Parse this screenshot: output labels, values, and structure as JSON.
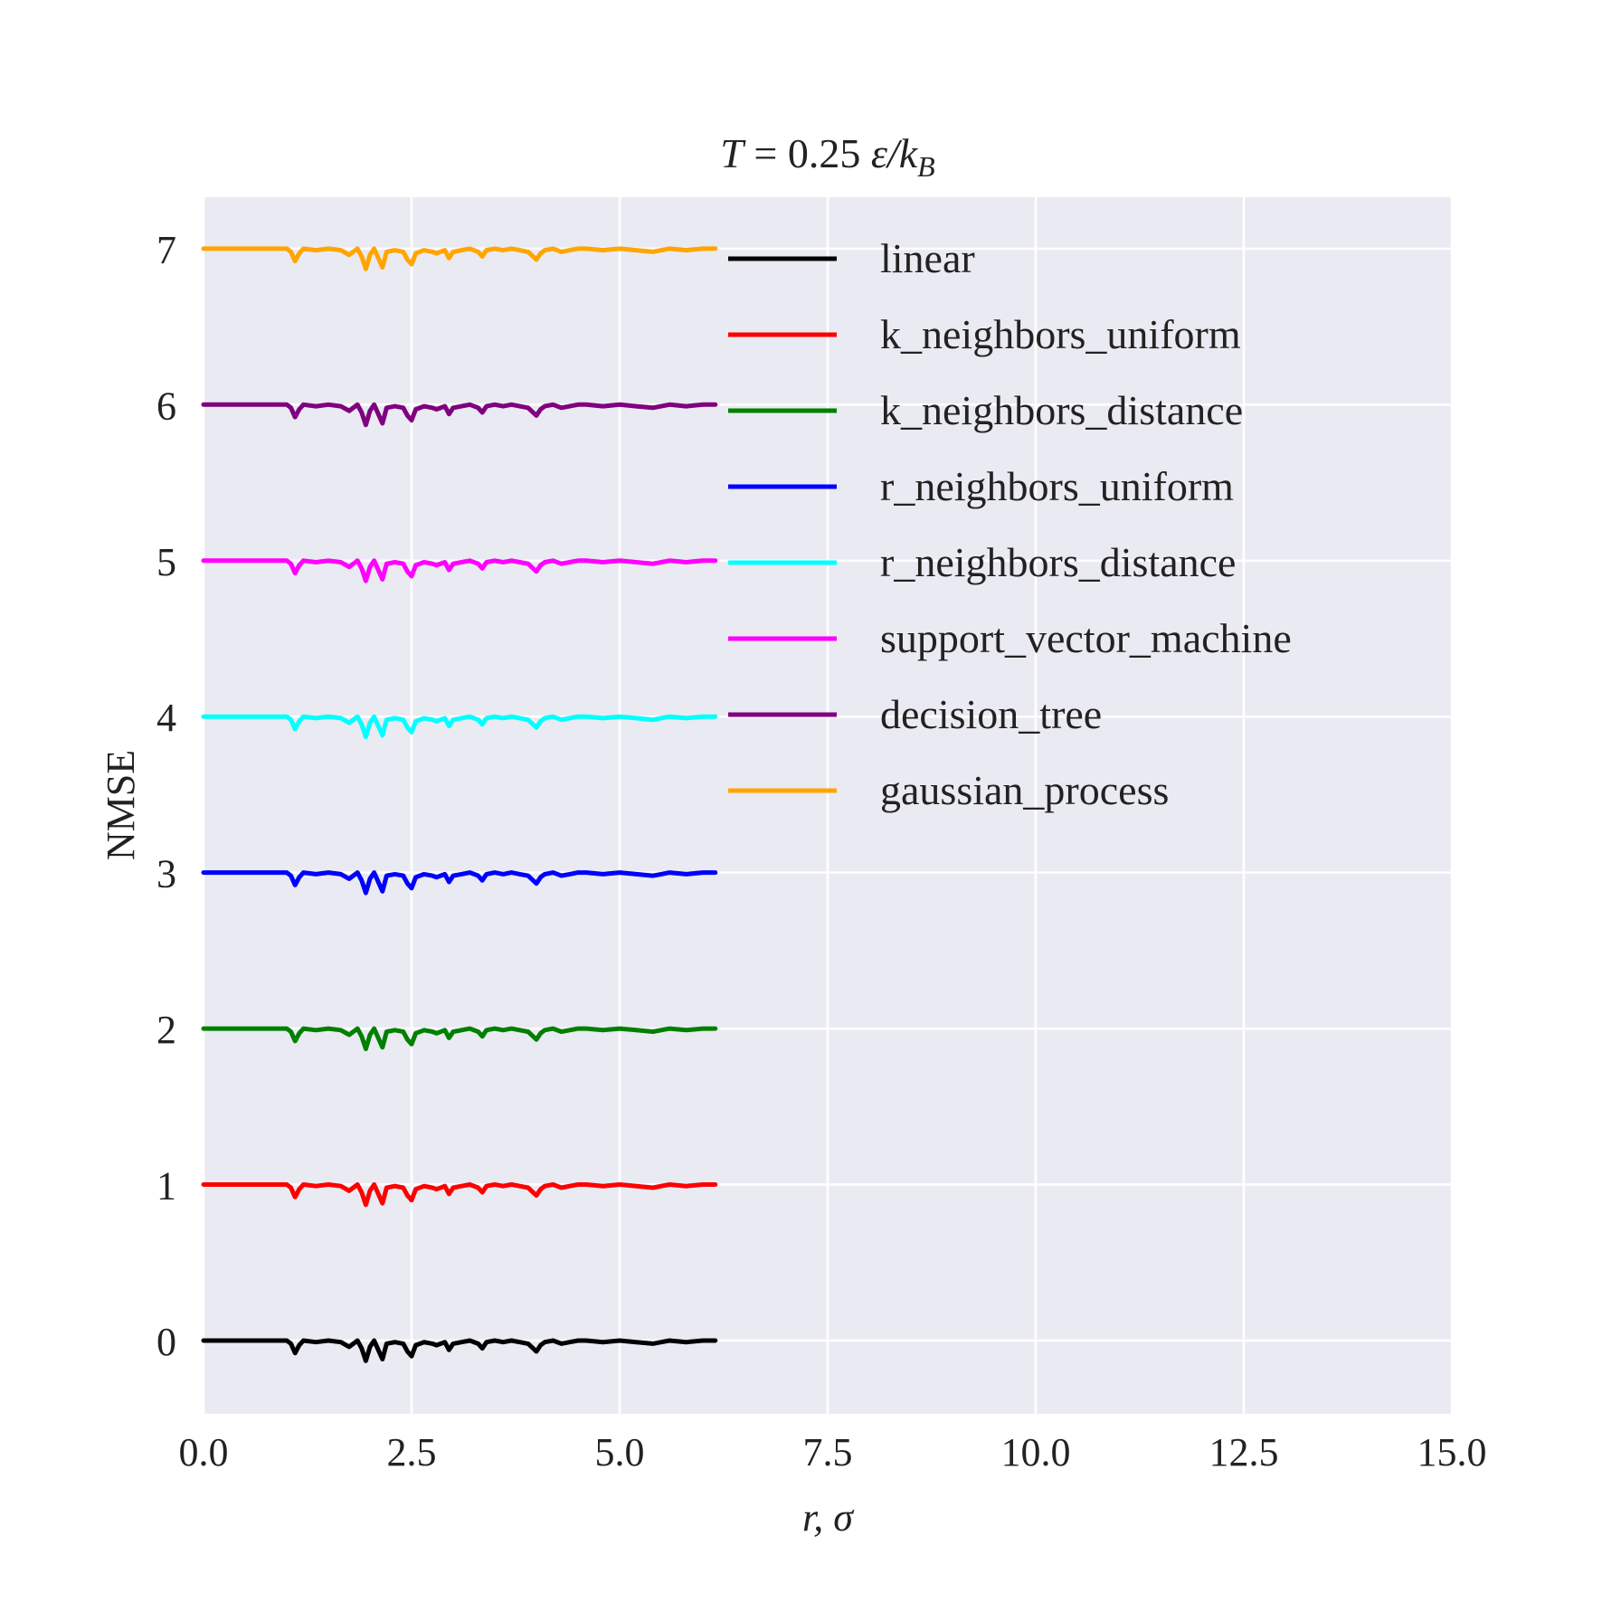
{
  "chart_data": {
    "type": "line",
    "title": {
      "pre": "T",
      "eq": " = 0.25 ",
      "var": "ε/k",
      "sub": "B"
    },
    "xlabel": "r, σ",
    "ylabel": "NMSE",
    "xlim": [
      0,
      15
    ],
    "ylim": [
      -0.47,
      7.33
    ],
    "xticks": [
      0,
      2.5,
      5,
      7.5,
      10,
      12.5,
      15
    ],
    "xtick_labels": [
      "0.0",
      "2.5",
      "5.0",
      "7.5",
      "10.0",
      "12.5",
      "15.0"
    ],
    "yticks": [
      0,
      1,
      2,
      3,
      4,
      5,
      6,
      7
    ],
    "ytick_labels": [
      "0",
      "1",
      "2",
      "3",
      "4",
      "5",
      "6",
      "7"
    ],
    "grid": true,
    "legend_position": "top-right",
    "x": [
      0,
      0.25,
      0.5,
      0.75,
      1.0,
      1.05,
      1.1,
      1.15,
      1.2,
      1.35,
      1.5,
      1.65,
      1.75,
      1.85,
      1.9,
      1.95,
      2.0,
      2.05,
      2.15,
      2.2,
      2.3,
      2.4,
      2.45,
      2.5,
      2.55,
      2.65,
      2.75,
      2.8,
      2.9,
      2.95,
      3.0,
      3.1,
      3.2,
      3.3,
      3.35,
      3.4,
      3.5,
      3.6,
      3.7,
      3.8,
      3.9,
      4.0,
      4.05,
      4.1,
      4.2,
      4.3,
      4.4,
      4.5,
      4.6,
      4.8,
      5.0,
      5.2,
      5.4,
      5.5,
      5.6,
      5.8,
      6.0,
      6.15
    ],
    "series": [
      {
        "name": "linear",
        "color": "#000000",
        "offset": 0
      },
      {
        "name": "k_neighbors_uniform",
        "color": "#ff0000",
        "offset": 1
      },
      {
        "name": "k_neighbors_distance",
        "color": "#008000",
        "offset": 2
      },
      {
        "name": "r_neighbors_uniform",
        "color": "#0000ff",
        "offset": 3
      },
      {
        "name": "r_neighbors_distance",
        "color": "#00ffff",
        "offset": 4
      },
      {
        "name": "support_vector_machine",
        "color": "#ff00ff",
        "offset": 5
      },
      {
        "name": "decision_tree",
        "color": "#800080",
        "offset": 6
      },
      {
        "name": "gaussian_process",
        "color": "#ffa500",
        "offset": 7
      }
    ],
    "profile": [
      0,
      0,
      0,
      0,
      0,
      -0.02,
      -0.08,
      -0.03,
      0,
      -0.01,
      0,
      -0.01,
      -0.04,
      0,
      -0.05,
      -0.13,
      -0.04,
      0,
      -0.12,
      -0.02,
      -0.01,
      -0.02,
      -0.07,
      -0.1,
      -0.03,
      -0.01,
      -0.02,
      -0.03,
      -0.01,
      -0.06,
      -0.02,
      -0.01,
      0,
      -0.02,
      -0.05,
      -0.01,
      0,
      -0.01,
      0,
      -0.01,
      -0.02,
      -0.07,
      -0.03,
      -0.01,
      0,
      -0.02,
      -0.01,
      0,
      0,
      -0.01,
      0,
      -0.01,
      -0.02,
      -0.01,
      0,
      -0.01,
      0,
      0
    ]
  }
}
